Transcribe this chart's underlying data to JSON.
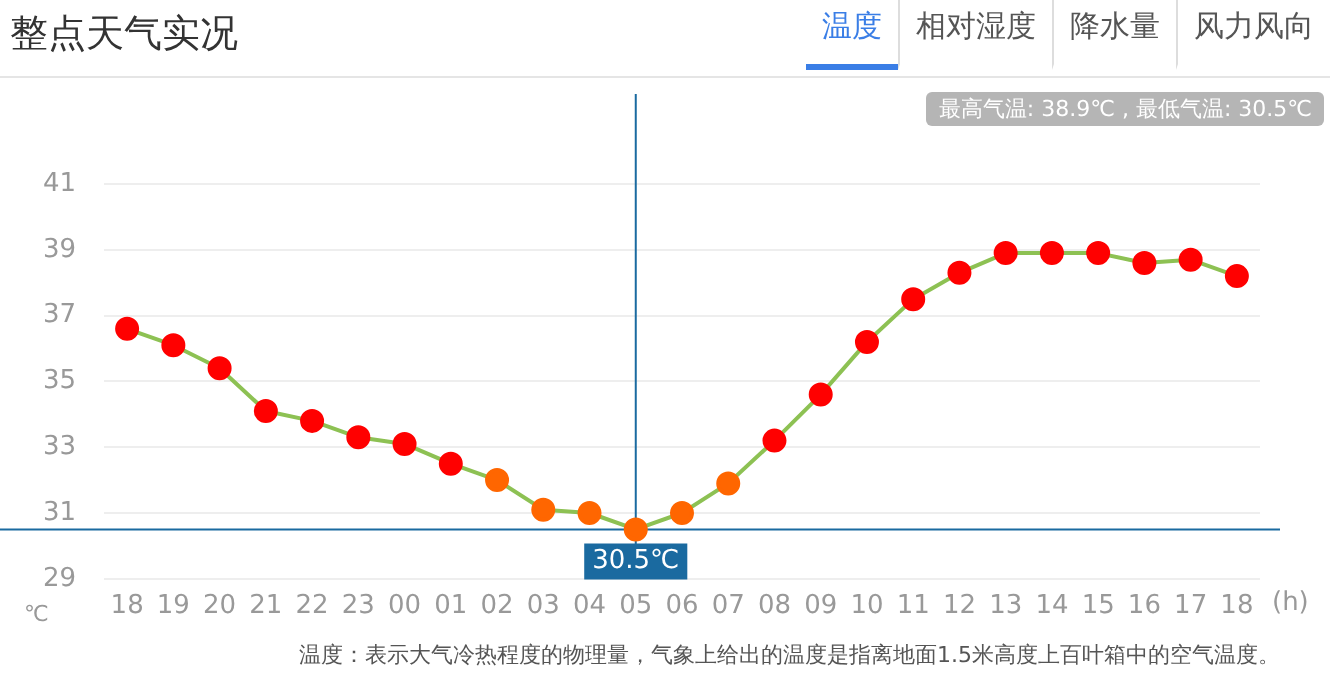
{
  "chart_data": {
    "type": "line",
    "title": "整点天气实况",
    "subtitle": "最高气温: 38.9℃ , 最低气温: 30.5℃",
    "annotations": [
      "温度",
      "相对湿度",
      "降水量",
      "风力风向",
      "温度：表示大气冷热程度的物理量，气象上给出的温度是指离地面1.5米高度上百叶箱中的空气温度。"
    ],
    "xlabel": "(h)",
    "ylabel": "℃",
    "categories": [
      "18",
      "19",
      "20",
      "21",
      "22",
      "23",
      "00",
      "01",
      "02",
      "03",
      "04",
      "05",
      "06",
      "07",
      "08",
      "09",
      "10",
      "11",
      "12",
      "13",
      "14",
      "15",
      "16",
      "17",
      "18"
    ],
    "series": [
      {
        "color": "#8dc153",
        "values": [
          36.6,
          36.1,
          35.4,
          34.1,
          33.8,
          33.3,
          33.1,
          32.5,
          32.0,
          31.1,
          31.0,
          30.5,
          31.0,
          31.9,
          33.2,
          34.6,
          36.2,
          37.5,
          38.3,
          38.9,
          38.9,
          38.9,
          38.6,
          38.7,
          38.2
        ],
        "colors": [
          "#ff0000",
          "#ff0000",
          "#ff0000",
          "#ff0000",
          "#ff0000",
          "#ff0000",
          "#ff0000",
          "#ff0000",
          "#ff6600",
          "#ff6600",
          "#ff6600",
          "#ff6600",
          "#ff6600",
          "#ff6600",
          "#ff0000",
          "#ff0000",
          "#ff0000",
          "#ff0000",
          "#ff0000",
          "#ff0000",
          "#ff0000",
          "#ff0000",
          "#ff0000",
          "#ff0000",
          "#ff0000"
        ]
      }
    ],
    "ylim": [
      29,
      41
    ],
    "yticks": [
      29,
      31,
      33,
      35,
      37,
      39,
      41
    ],
    "grid": "y",
    "legend": false,
    "marker": "circle",
    "line_style": "solid",
    "ref_lines": [
      {
        "axis": "x",
        "value": "05",
        "color": "#1a6aa0"
      },
      {
        "axis": "y",
        "value": 30.5,
        "label": "30.5℃",
        "color": "#1a6aa0"
      }
    ]
  }
}
